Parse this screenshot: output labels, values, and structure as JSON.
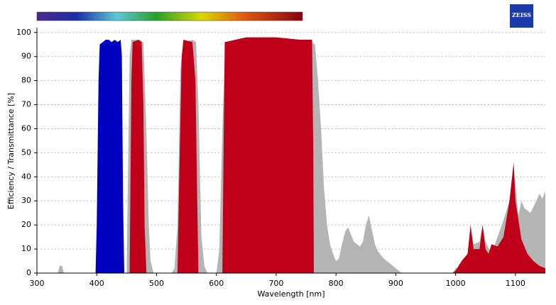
{
  "chart_data": {
    "type": "area",
    "logo": "ZEISS",
    "x_label": "Wavelength [nm]",
    "y_label": "Efficiency / Transmittance [%]",
    "xlim": [
      300,
      1150
    ],
    "xticks": [
      300,
      400,
      500,
      600,
      700,
      800,
      900,
      1000,
      1100
    ],
    "ylim": [
      0,
      102
    ],
    "yticks": [
      0,
      10,
      20,
      30,
      40,
      50,
      60,
      70,
      80,
      90,
      100
    ],
    "grid": true,
    "series": [
      {
        "color": "#b4b4b4",
        "x": [
          300,
          335,
          338,
          342,
          345,
          440,
          450,
          455,
          458,
          470,
          478,
          483,
          487,
          490,
          495,
          525,
          530,
          535,
          540,
          545,
          560,
          566,
          570,
          575,
          580,
          585,
          600,
          605,
          610,
          615,
          700,
          760,
          765,
          770,
          775,
          780,
          785,
          790,
          795,
          800,
          805,
          810,
          815,
          820,
          825,
          830,
          835,
          840,
          845,
          850,
          855,
          860,
          865,
          870,
          880,
          890,
          900,
          910,
          995,
          1000,
          1010,
          1020,
          1025,
          1030,
          1040,
          1045,
          1050,
          1060,
          1070,
          1080,
          1090,
          1097,
          1100,
          1105,
          1110,
          1115,
          1120,
          1125,
          1135,
          1140,
          1145,
          1150
        ],
        "values": [
          0,
          0,
          3,
          3,
          0,
          0,
          0,
          90,
          97,
          97,
          96,
          60,
          20,
          5,
          0,
          0,
          2,
          20,
          85,
          96,
          97,
          96,
          70,
          15,
          3,
          0,
          0,
          10,
          60,
          95,
          97,
          96,
          95,
          80,
          60,
          35,
          20,
          12,
          8,
          5,
          6,
          12,
          17,
          19,
          16,
          13,
          12,
          11,
          13,
          20,
          24,
          18,
          12,
          9,
          6,
          4,
          2,
          0,
          0,
          2,
          3,
          8,
          18,
          12,
          13,
          20,
          13,
          8,
          15,
          22,
          30,
          45,
          36,
          24,
          30,
          27,
          26,
          25,
          30,
          33,
          31,
          34
        ]
      },
      {
        "color": "#0000c0",
        "x": [
          398,
          400,
          403,
          405,
          410,
          415,
          420,
          425,
          430,
          435,
          440,
          442,
          444,
          446
        ],
        "values": [
          0,
          20,
          80,
          95,
          96,
          97,
          97,
          96,
          97,
          96,
          97,
          90,
          30,
          0
        ]
      },
      {
        "color": "#c00018",
        "x": [
          455,
          458,
          460,
          470,
          475,
          478,
          480,
          483,
          535,
          538,
          542,
          545,
          560,
          565,
          568,
          570,
          610,
          612,
          614,
          650,
          700,
          740,
          760,
          762,
          763,
          995,
          1000,
          1010,
          1020,
          1025,
          1030,
          1040,
          1045,
          1050,
          1055,
          1060,
          1070,
          1080,
          1090,
          1097,
          1100,
          1105,
          1110,
          1120,
          1130,
          1140,
          1150
        ],
        "values": [
          0,
          80,
          96,
          97,
          96,
          70,
          20,
          0,
          0,
          40,
          90,
          97,
          96,
          80,
          30,
          0,
          0,
          50,
          96,
          98,
          98,
          97,
          97,
          50,
          0,
          0,
          1,
          5,
          8,
          20,
          10,
          10,
          20,
          10,
          8,
          12,
          11,
          15,
          30,
          46,
          30,
          22,
          14,
          8,
          5,
          3,
          2
        ]
      }
    ]
  }
}
